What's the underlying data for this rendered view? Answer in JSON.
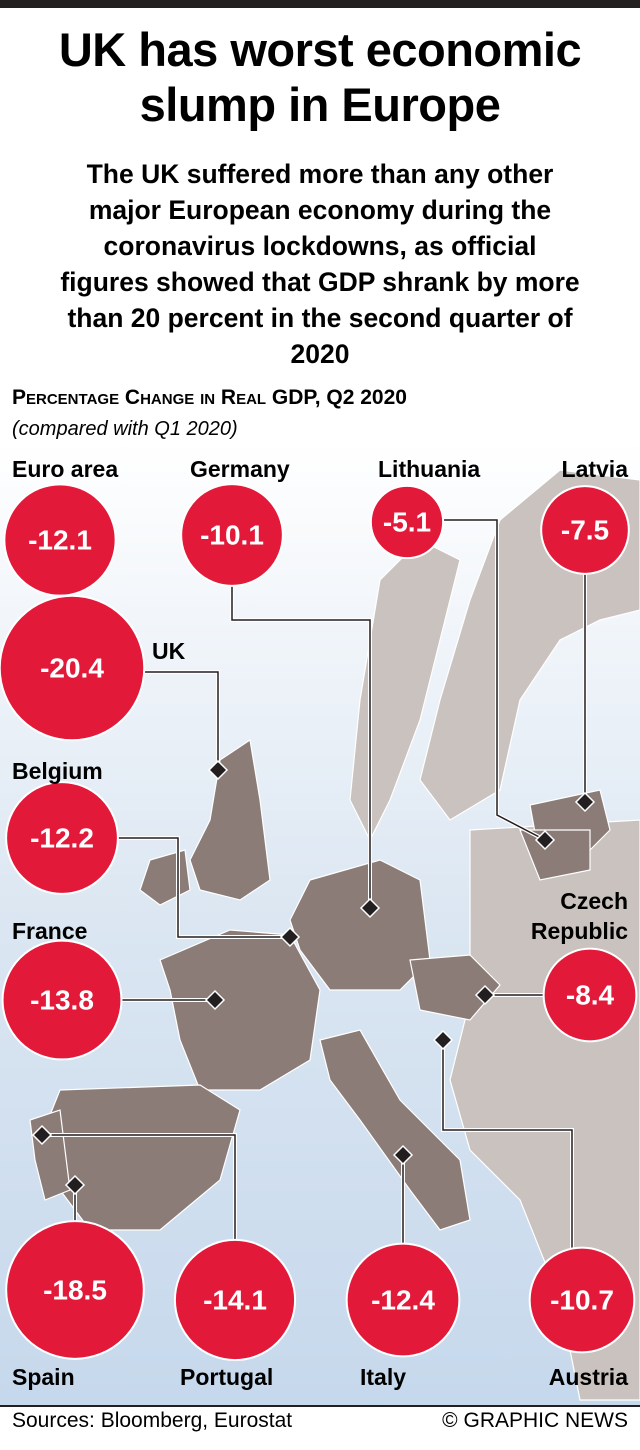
{
  "title": "UK has worst economic slump in Europe",
  "subtitle": "The UK suffered more than any other major European economy during the coronavirus lockdowns, as official figures showed that GDP shrank by more than 20 percent in the second quarter of 2020",
  "chart_title": "Percentage Change in Real GDP, Q2 2020",
  "chart_note": "(compared with Q1 2020)",
  "chart_data": {
    "type": "bubble-map",
    "color": "#e3193a",
    "regions": [
      {
        "name": "Euro area",
        "value": -12.1
      },
      {
        "name": "Germany",
        "value": -10.1
      },
      {
        "name": "Lithuania",
        "value": -5.1
      },
      {
        "name": "Latvia",
        "value": -7.5
      },
      {
        "name": "UK",
        "value": -20.4
      },
      {
        "name": "Belgium",
        "value": -12.2
      },
      {
        "name": "France",
        "value": -13.8
      },
      {
        "name": "Czech Republic",
        "value": -8.4
      },
      {
        "name": "Spain",
        "value": -18.5
      },
      {
        "name": "Portugal",
        "value": -14.1
      },
      {
        "name": "Italy",
        "value": -12.4
      },
      {
        "name": "Austria",
        "value": -10.7
      }
    ]
  },
  "source": "Sources: Bloomberg, Eurostat",
  "credit": "© GRAPHIC NEWS"
}
